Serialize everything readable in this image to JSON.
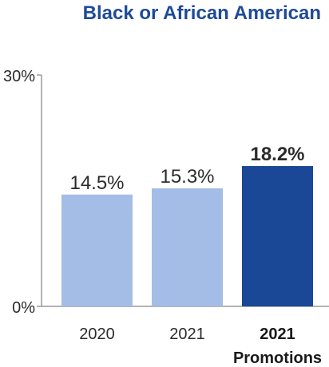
{
  "chart_data": {
    "type": "bar",
    "title": "Black or African American",
    "categories": [
      "2020",
      "2021",
      "2021\nPromotions"
    ],
    "values": [
      14.5,
      15.3,
      18.2
    ],
    "value_labels": [
      "14.5%",
      "15.3%",
      "18.2%"
    ],
    "highlight": [
      false,
      false,
      true
    ],
    "y_tick_labels": [
      "0%",
      "30%"
    ],
    "ylim": [
      0,
      30
    ],
    "grid": false,
    "legend": "none",
    "xlabel": "",
    "ylabel": ""
  },
  "colors": {
    "title": "#1e4a99",
    "bar": "#a3bde6",
    "bar_highlight": "#1a4796",
    "highlight_label": "#1a4796",
    "axis": "#9a9a9a",
    "text": "#2b2b2b"
  }
}
